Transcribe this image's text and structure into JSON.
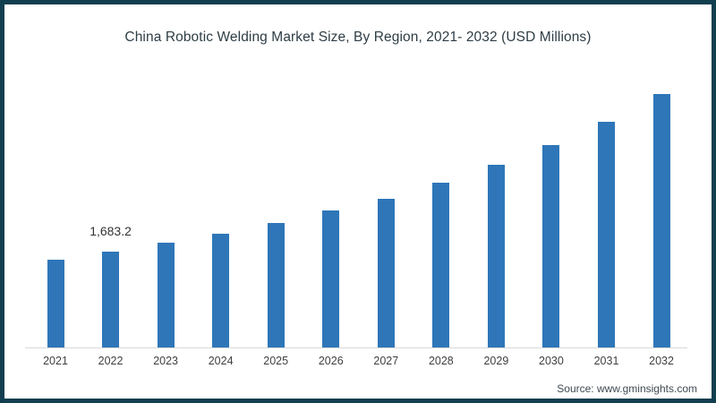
{
  "header": {
    "title": "China Robotic Welding Market Size, By Region, 2021- 2032 (USD Millions)"
  },
  "footer": {
    "source_label": "Source: www.gminsights.com"
  },
  "chart_data": {
    "type": "bar",
    "title": "China Robotic Welding Market Size, By Region, 2021- 2032 (USD Millions)",
    "categories": [
      "2021",
      "2022",
      "2023",
      "2024",
      "2025",
      "2026",
      "2027",
      "2028",
      "2029",
      "2030",
      "2031",
      "2032"
    ],
    "values": [
      1540,
      1683.2,
      1840,
      2000,
      2190,
      2410,
      2610,
      2890,
      3210,
      3560,
      3960,
      4450
    ],
    "data_labels": [
      {
        "category": "2022",
        "text": "1,683.2"
      }
    ],
    "xlabel": "",
    "ylabel": "",
    "ylim": [
      0,
      4600
    ],
    "y_axis_visible": false,
    "grid": false,
    "legend": false,
    "bar_color": "#2E76B8",
    "axis_line_color": "#D9D9D9",
    "frame_border_color": "#123F4F"
  }
}
